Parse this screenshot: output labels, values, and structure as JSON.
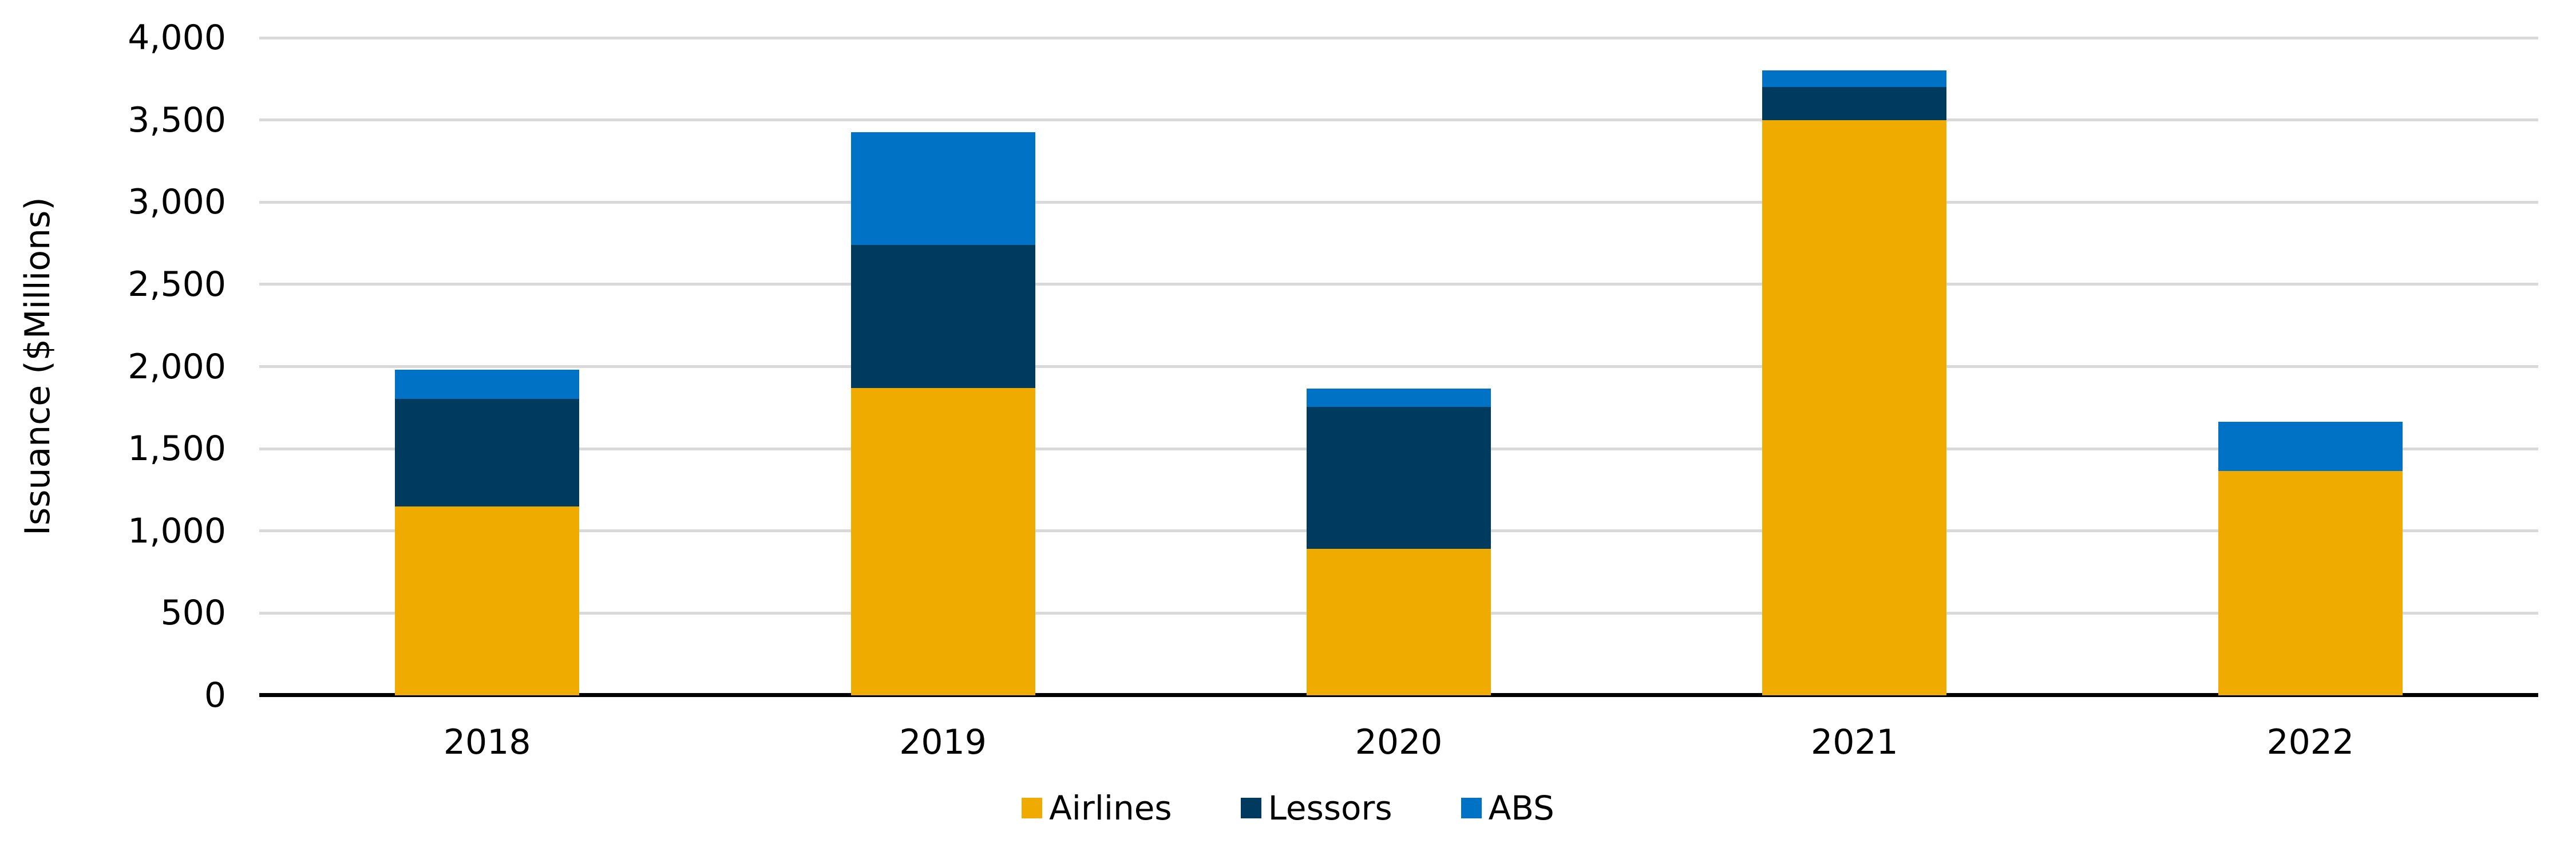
{
  "chart_data": {
    "type": "bar",
    "stacked": true,
    "title": "",
    "ylabel": "Issuance ($Millions)",
    "xlabel": "",
    "categories": [
      "2018",
      "2019",
      "2020",
      "2021",
      "2022"
    ],
    "series": [
      {
        "name": "Airlines",
        "color": "#EFAB00",
        "values": [
          1150,
          1870,
          890,
          3500,
          1365
        ]
      },
      {
        "name": "Lessors",
        "color": "#003A5E",
        "values": [
          655,
          870,
          865,
          200,
          0
        ]
      },
      {
        "name": "ABS",
        "color": "#0072C6",
        "values": [
          175,
          685,
          110,
          100,
          300
        ]
      }
    ],
    "ylim": [
      0,
      4000
    ],
    "yticks": [
      {
        "value": 0,
        "label": "0"
      },
      {
        "value": 500,
        "label": "500"
      },
      {
        "value": 1000,
        "label": "1,000"
      },
      {
        "value": 1500,
        "label": "1,500"
      },
      {
        "value": 2000,
        "label": "2,000"
      },
      {
        "value": 2500,
        "label": "2,500"
      },
      {
        "value": 3000,
        "label": "3,000"
      },
      {
        "value": 3500,
        "label": "3,500"
      },
      {
        "value": 4000,
        "label": "4,000"
      }
    ],
    "grid": "horizontal",
    "legend_position": "bottom"
  },
  "colors": {
    "background": "#FFFFFF",
    "gridline": "#D9D9D9",
    "axis": "#000000",
    "text": "#000000"
  }
}
